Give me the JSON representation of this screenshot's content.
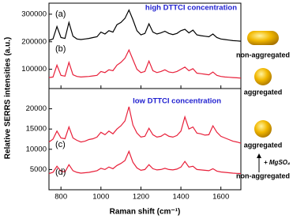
{
  "chart_data": [
    {
      "type": "line",
      "title": "high DTTCI concentration",
      "x": [
        740,
        760,
        780,
        800,
        820,
        840,
        860,
        880,
        900,
        920,
        940,
        960,
        980,
        1000,
        1020,
        1040,
        1060,
        1080,
        1100,
        1120,
        1140,
        1160,
        1180,
        1200,
        1220,
        1240,
        1260,
        1280,
        1300,
        1320,
        1340,
        1360,
        1380,
        1400,
        1420,
        1440,
        1460,
        1480,
        1500,
        1520,
        1540,
        1560,
        1580,
        1600,
        1620,
        1640,
        1660,
        1680,
        1700
      ],
      "series": [
        {
          "name": "(a)",
          "color": "#000000",
          "values": [
            205000,
            210000,
            255000,
            215000,
            212000,
            270000,
            220000,
            210000,
            208000,
            210000,
            212000,
            215000,
            218000,
            235000,
            228000,
            240000,
            235000,
            262000,
            270000,
            285000,
            315000,
            280000,
            240000,
            225000,
            230000,
            265000,
            235000,
            228000,
            232000,
            238000,
            230000,
            226000,
            230000,
            240000,
            245000,
            232000,
            242000,
            225000,
            222000,
            220000,
            218000,
            228000,
            215000,
            210000,
            208000,
            206000,
            204000,
            203000,
            202000
          ]
        },
        {
          "name": "(b)",
          "color": "#e8203a",
          "values": [
            70000,
            72000,
            115000,
            78000,
            75000,
            125000,
            80000,
            74000,
            72000,
            73000,
            74000,
            76000,
            78000,
            92000,
            88000,
            98000,
            95000,
            115000,
            125000,
            140000,
            170000,
            135000,
            100000,
            88000,
            92000,
            130000,
            95000,
            88000,
            92000,
            98000,
            90000,
            88000,
            92000,
            100000,
            108000,
            95000,
            102000,
            86000,
            84000,
            82000,
            80000,
            90000,
            78000,
            74000,
            72000,
            71000,
            70000,
            69000,
            68000
          ]
        }
      ],
      "xlim": [
        740,
        1700
      ],
      "xticks": [
        800,
        1000,
        1200,
        1400,
        1600
      ],
      "ylim": [
        30000,
        340000
      ],
      "yticks": [
        100000,
        200000,
        300000
      ]
    },
    {
      "type": "line",
      "title": "low DTTCI concentration",
      "xlabel": "Raman shift (cm⁻¹)",
      "x": [
        740,
        760,
        780,
        800,
        820,
        840,
        860,
        880,
        900,
        920,
        940,
        960,
        980,
        1000,
        1020,
        1040,
        1060,
        1080,
        1100,
        1120,
        1140,
        1160,
        1180,
        1200,
        1220,
        1240,
        1260,
        1280,
        1300,
        1320,
        1340,
        1360,
        1380,
        1400,
        1420,
        1440,
        1460,
        1480,
        1500,
        1520,
        1540,
        1560,
        1580,
        1600,
        1620,
        1640,
        1660,
        1680,
        1700
      ],
      "series": [
        {
          "name": "(c)",
          "color": "#e8203a",
          "values": [
            11800,
            12500,
            14500,
            12800,
            12600,
            15500,
            12800,
            12200,
            11800,
            12000,
            12400,
            12600,
            13000,
            14200,
            13600,
            14500,
            13800,
            15000,
            15800,
            17000,
            20500,
            16000,
            14000,
            13000,
            13200,
            15200,
            13600,
            13000,
            13200,
            13800,
            13200,
            13000,
            13400,
            14500,
            18000,
            15000,
            15500,
            14000,
            13800,
            13500,
            13600,
            15800,
            14200,
            13200,
            12800,
            12400,
            12000,
            11800,
            11500
          ]
        },
        {
          "name": "(d)",
          "color": "#e8203a",
          "values": [
            4000,
            4300,
            5800,
            4600,
            4400,
            6200,
            4700,
            4300,
            4100,
            4200,
            4300,
            4500,
            4700,
            5300,
            5000,
            5600,
            5200,
            6000,
            6500,
            7200,
            9500,
            6800,
            5400,
            4800,
            5000,
            6200,
            5200,
            4900,
            5000,
            5300,
            5000,
            4900,
            5100,
            5600,
            7000,
            5600,
            5800,
            5000,
            4900,
            4800,
            4700,
            5200,
            4600,
            4400,
            4300,
            4200,
            4100,
            4050,
            4000
          ]
        }
      ],
      "xlim": [
        740,
        1700
      ],
      "xticks": [
        800,
        1000,
        1200,
        1400,
        1600
      ],
      "ylim": [
        0,
        25000
      ],
      "yticks": [
        5000,
        10000,
        15000,
        20000
      ]
    }
  ],
  "ylabel": "Relative SERRS intensities (a.u.)",
  "side_labels": {
    "top_shape": "non-aggregated",
    "top_sphere": "aggregated",
    "bottom_sphere": "aggregated",
    "reagent": "+ MgSO₄",
    "bottom_shape": "non-aggregated"
  }
}
